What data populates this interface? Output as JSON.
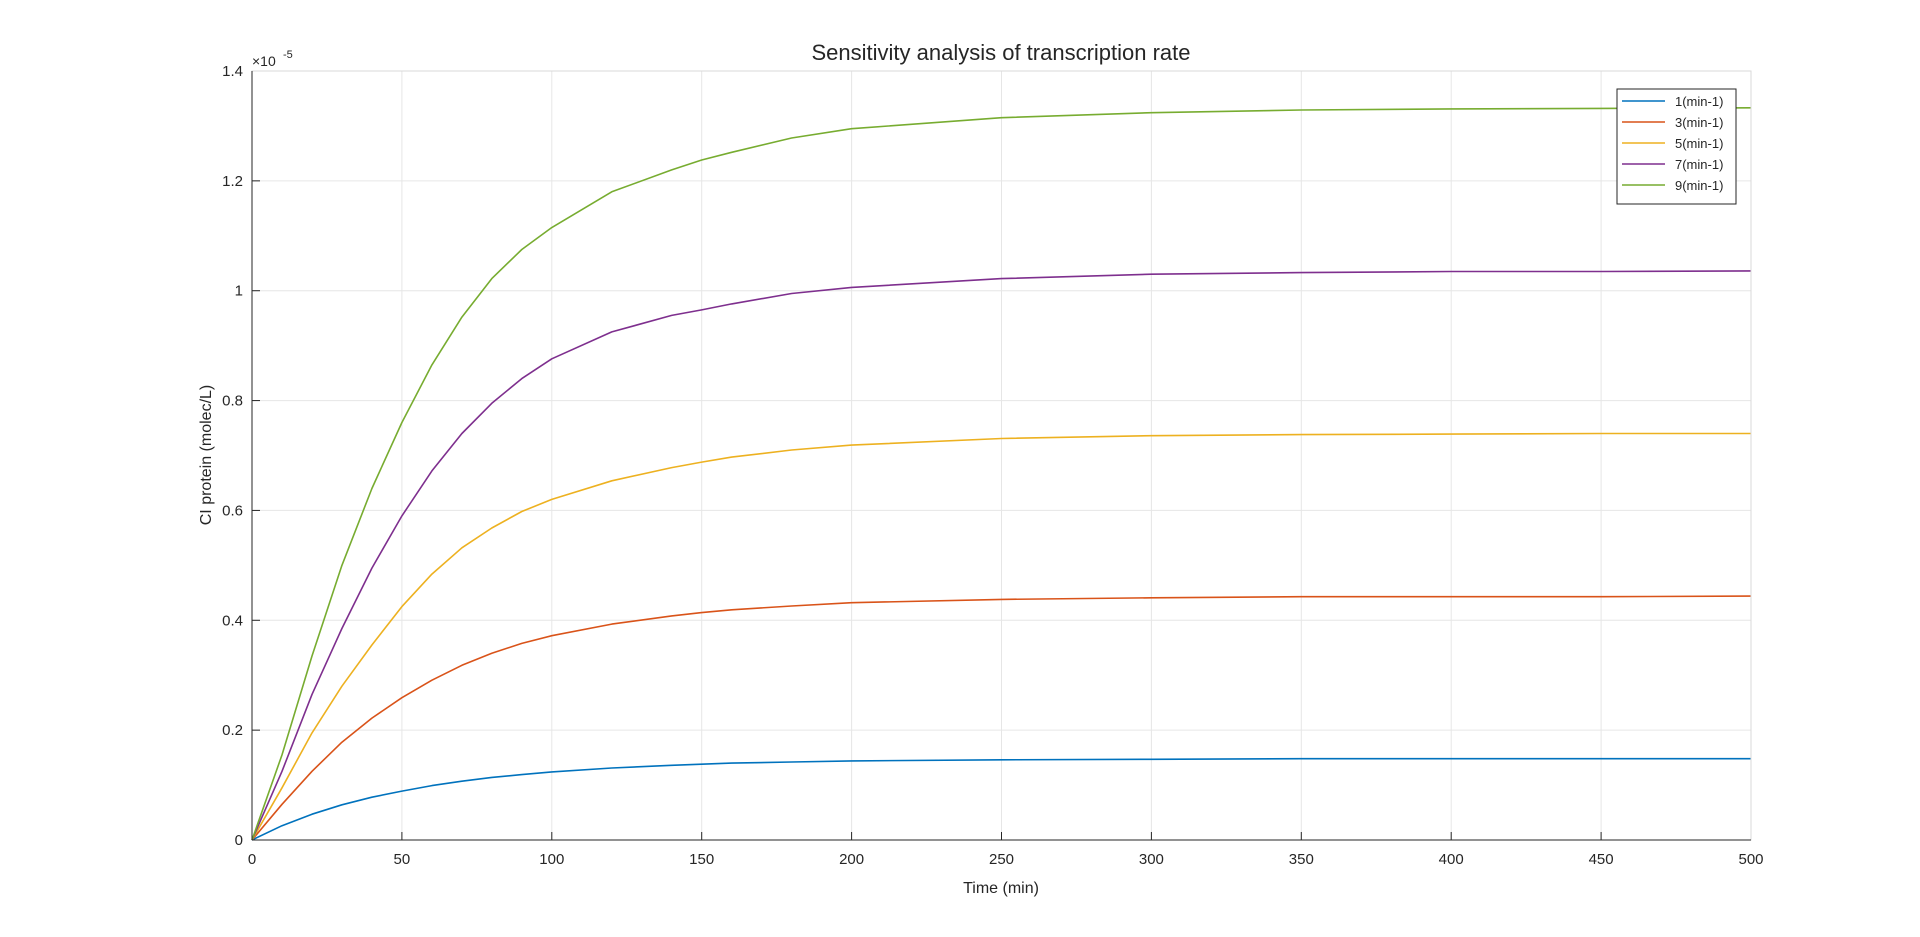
{
  "chart_data": {
    "type": "line",
    "title": "Sensitivity analysis of transcription rate",
    "xlabel": "Time (min)",
    "ylabel": "CI protein (molec/L)",
    "y_exponent_label": "×10",
    "y_exponent_power": "-5",
    "xlim": [
      0,
      500
    ],
    "ylim": [
      0,
      1.4
    ],
    "xticks": [
      0,
      50,
      100,
      150,
      200,
      250,
      300,
      350,
      400,
      450,
      500
    ],
    "yticks": [
      0,
      0.2,
      0.4,
      0.6,
      0.8,
      1,
      1.2,
      1.4
    ],
    "xtick_labels": [
      "0",
      "50",
      "100",
      "150",
      "200",
      "250",
      "300",
      "350",
      "400",
      "450",
      "500"
    ],
    "ytick_labels": [
      "0",
      "0.2",
      "0.4",
      "0.6",
      "0.8",
      "1",
      "1.2",
      "1.4"
    ],
    "grid": true,
    "legend_position": "top-right",
    "x": [
      0,
      10,
      20,
      30,
      40,
      50,
      60,
      70,
      80,
      90,
      100,
      120,
      140,
      150,
      160,
      180,
      200,
      250,
      300,
      350,
      400,
      450,
      500
    ],
    "series": [
      {
        "name": "1(min-1)",
        "color": "#0072BD",
        "values": [
          0,
          0.026,
          0.047,
          0.064,
          0.078,
          0.089,
          0.099,
          0.107,
          0.114,
          0.119,
          0.124,
          0.131,
          0.136,
          0.138,
          0.14,
          0.142,
          0.144,
          0.146,
          0.147,
          0.148,
          0.148,
          0.148,
          0.148
        ]
      },
      {
        "name": "3(min-1)",
        "color": "#D95319",
        "values": [
          0,
          0.065,
          0.125,
          0.178,
          0.222,
          0.259,
          0.291,
          0.318,
          0.34,
          0.358,
          0.372,
          0.393,
          0.408,
          0.414,
          0.419,
          0.426,
          0.432,
          0.438,
          0.441,
          0.443,
          0.443,
          0.443,
          0.444
        ]
      },
      {
        "name": "5(min-1)",
        "color": "#EDB120",
        "values": [
          0,
          0.095,
          0.195,
          0.28,
          0.355,
          0.425,
          0.484,
          0.532,
          0.568,
          0.598,
          0.62,
          0.654,
          0.678,
          0.688,
          0.697,
          0.71,
          0.719,
          0.731,
          0.736,
          0.738,
          0.739,
          0.74,
          0.74
        ]
      },
      {
        "name": "7(min-1)",
        "color": "#7E2F8E",
        "values": [
          0,
          0.125,
          0.265,
          0.385,
          0.495,
          0.59,
          0.672,
          0.74,
          0.795,
          0.84,
          0.876,
          0.925,
          0.955,
          0.965,
          0.976,
          0.995,
          1.006,
          1.022,
          1.03,
          1.033,
          1.035,
          1.035,
          1.036
        ]
      },
      {
        "name": "9(min-1)",
        "color": "#77AC30",
        "values": [
          0,
          0.155,
          0.335,
          0.5,
          0.64,
          0.76,
          0.865,
          0.952,
          1.022,
          1.075,
          1.115,
          1.18,
          1.22,
          1.238,
          1.252,
          1.278,
          1.295,
          1.315,
          1.324,
          1.329,
          1.331,
          1.332,
          1.333
        ]
      }
    ]
  }
}
